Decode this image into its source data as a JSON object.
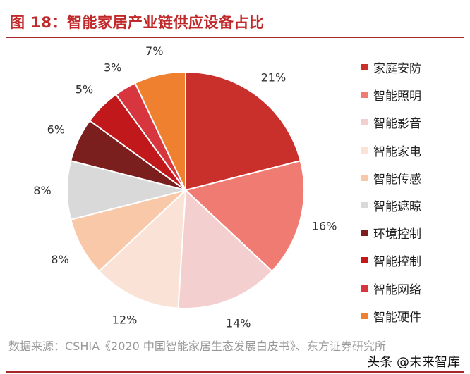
{
  "title": "图 18：智能家居产业链供应设备占比",
  "source": "数据来源：CSHIA《2020 中国智能家居生态发展白皮书》、东方证券研究所",
  "watermark": "头条 @未来智库",
  "chart_data": {
    "type": "pie",
    "title": "图 18：智能家居产业链供应设备占比",
    "start": "top",
    "direction": "clockwise",
    "legend_position": "right",
    "categories": [
      "家庭安防",
      "智能照明",
      "智能影音",
      "智能家电",
      "智能传感",
      "智能遮晾",
      "环境控制",
      "智能控制",
      "智能网络",
      "智能硬件"
    ],
    "values": [
      21,
      16,
      14,
      12,
      8,
      8,
      6,
      5,
      3,
      7
    ],
    "labels": [
      "21%",
      "16%",
      "14%",
      "12%",
      "8%",
      "8%",
      "6%",
      "5%",
      "3%",
      "7%"
    ],
    "colors": [
      "#C9302C",
      "#F07B72",
      "#F4CFD0",
      "#FAE3D6",
      "#F8C8A8",
      "#D9D9D9",
      "#7B1E1E",
      "#C0181B",
      "#D8363E",
      "#EE8030"
    ]
  }
}
